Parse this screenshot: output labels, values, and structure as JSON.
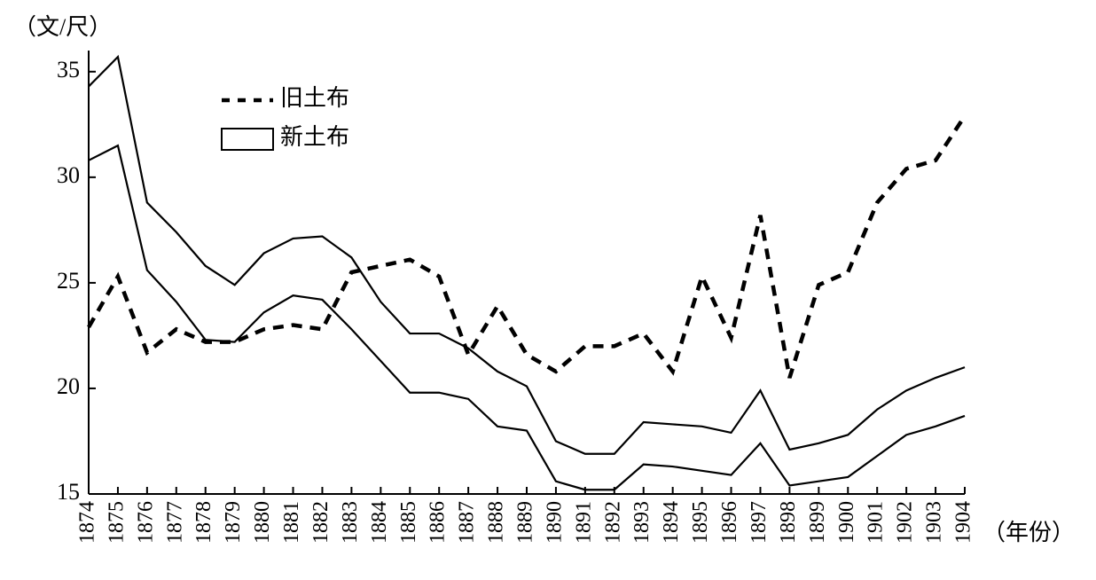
{
  "chart_data": {
    "type": "line",
    "y_label": "（文/尺）",
    "x_label": "（年份）",
    "categories": [
      "1874",
      "1875",
      "1876",
      "1877",
      "1878",
      "1879",
      "1880",
      "1881",
      "1882",
      "1883",
      "1884",
      "1885",
      "1886",
      "1887",
      "1888",
      "1889",
      "1890",
      "1891",
      "1892",
      "1893",
      "1894",
      "1895",
      "1896",
      "1897",
      "1898",
      "1899",
      "1900",
      "1901",
      "1902",
      "1903",
      "1904"
    ],
    "ylim": [
      15,
      36
    ],
    "yticks": [
      15,
      20,
      25,
      30,
      35
    ],
    "series": [
      {
        "name": "旧土布",
        "color": "#000000",
        "style": "dashed",
        "values": [
          22.9,
          25.3,
          21.7,
          22.8,
          22.2,
          22.2,
          22.8,
          23.0,
          22.8,
          25.5,
          25.8,
          26.1,
          25.3,
          21.6,
          23.9,
          21.6,
          20.8,
          22.0,
          22.0,
          22.6,
          20.8,
          25.3,
          22.4,
          28.2,
          20.5,
          24.9,
          25.5,
          28.8,
          30.4,
          30.8,
          32.9
        ]
      },
      {
        "name": "新土布",
        "color": "#000000",
        "style": "band",
        "high": [
          34.3,
          35.7,
          28.8,
          27.4,
          25.8,
          24.9,
          26.4,
          27.1,
          27.2,
          26.2,
          24.1,
          22.6,
          22.6,
          21.9,
          20.8,
          20.1,
          17.5,
          16.9,
          16.9,
          18.4,
          18.3,
          18.2,
          17.9,
          19.9,
          17.1,
          17.4,
          17.8,
          19.0,
          19.9,
          20.5,
          21.0
        ],
        "low": [
          30.8,
          31.5,
          25.6,
          24.1,
          22.3,
          22.2,
          23.6,
          24.4,
          24.2,
          22.8,
          21.3,
          19.8,
          19.8,
          19.5,
          18.2,
          18.0,
          15.6,
          15.2,
          15.2,
          16.4,
          16.3,
          16.1,
          15.9,
          17.4,
          15.4,
          15.6,
          15.8,
          16.8,
          17.8,
          18.2,
          18.7
        ]
      }
    ]
  }
}
